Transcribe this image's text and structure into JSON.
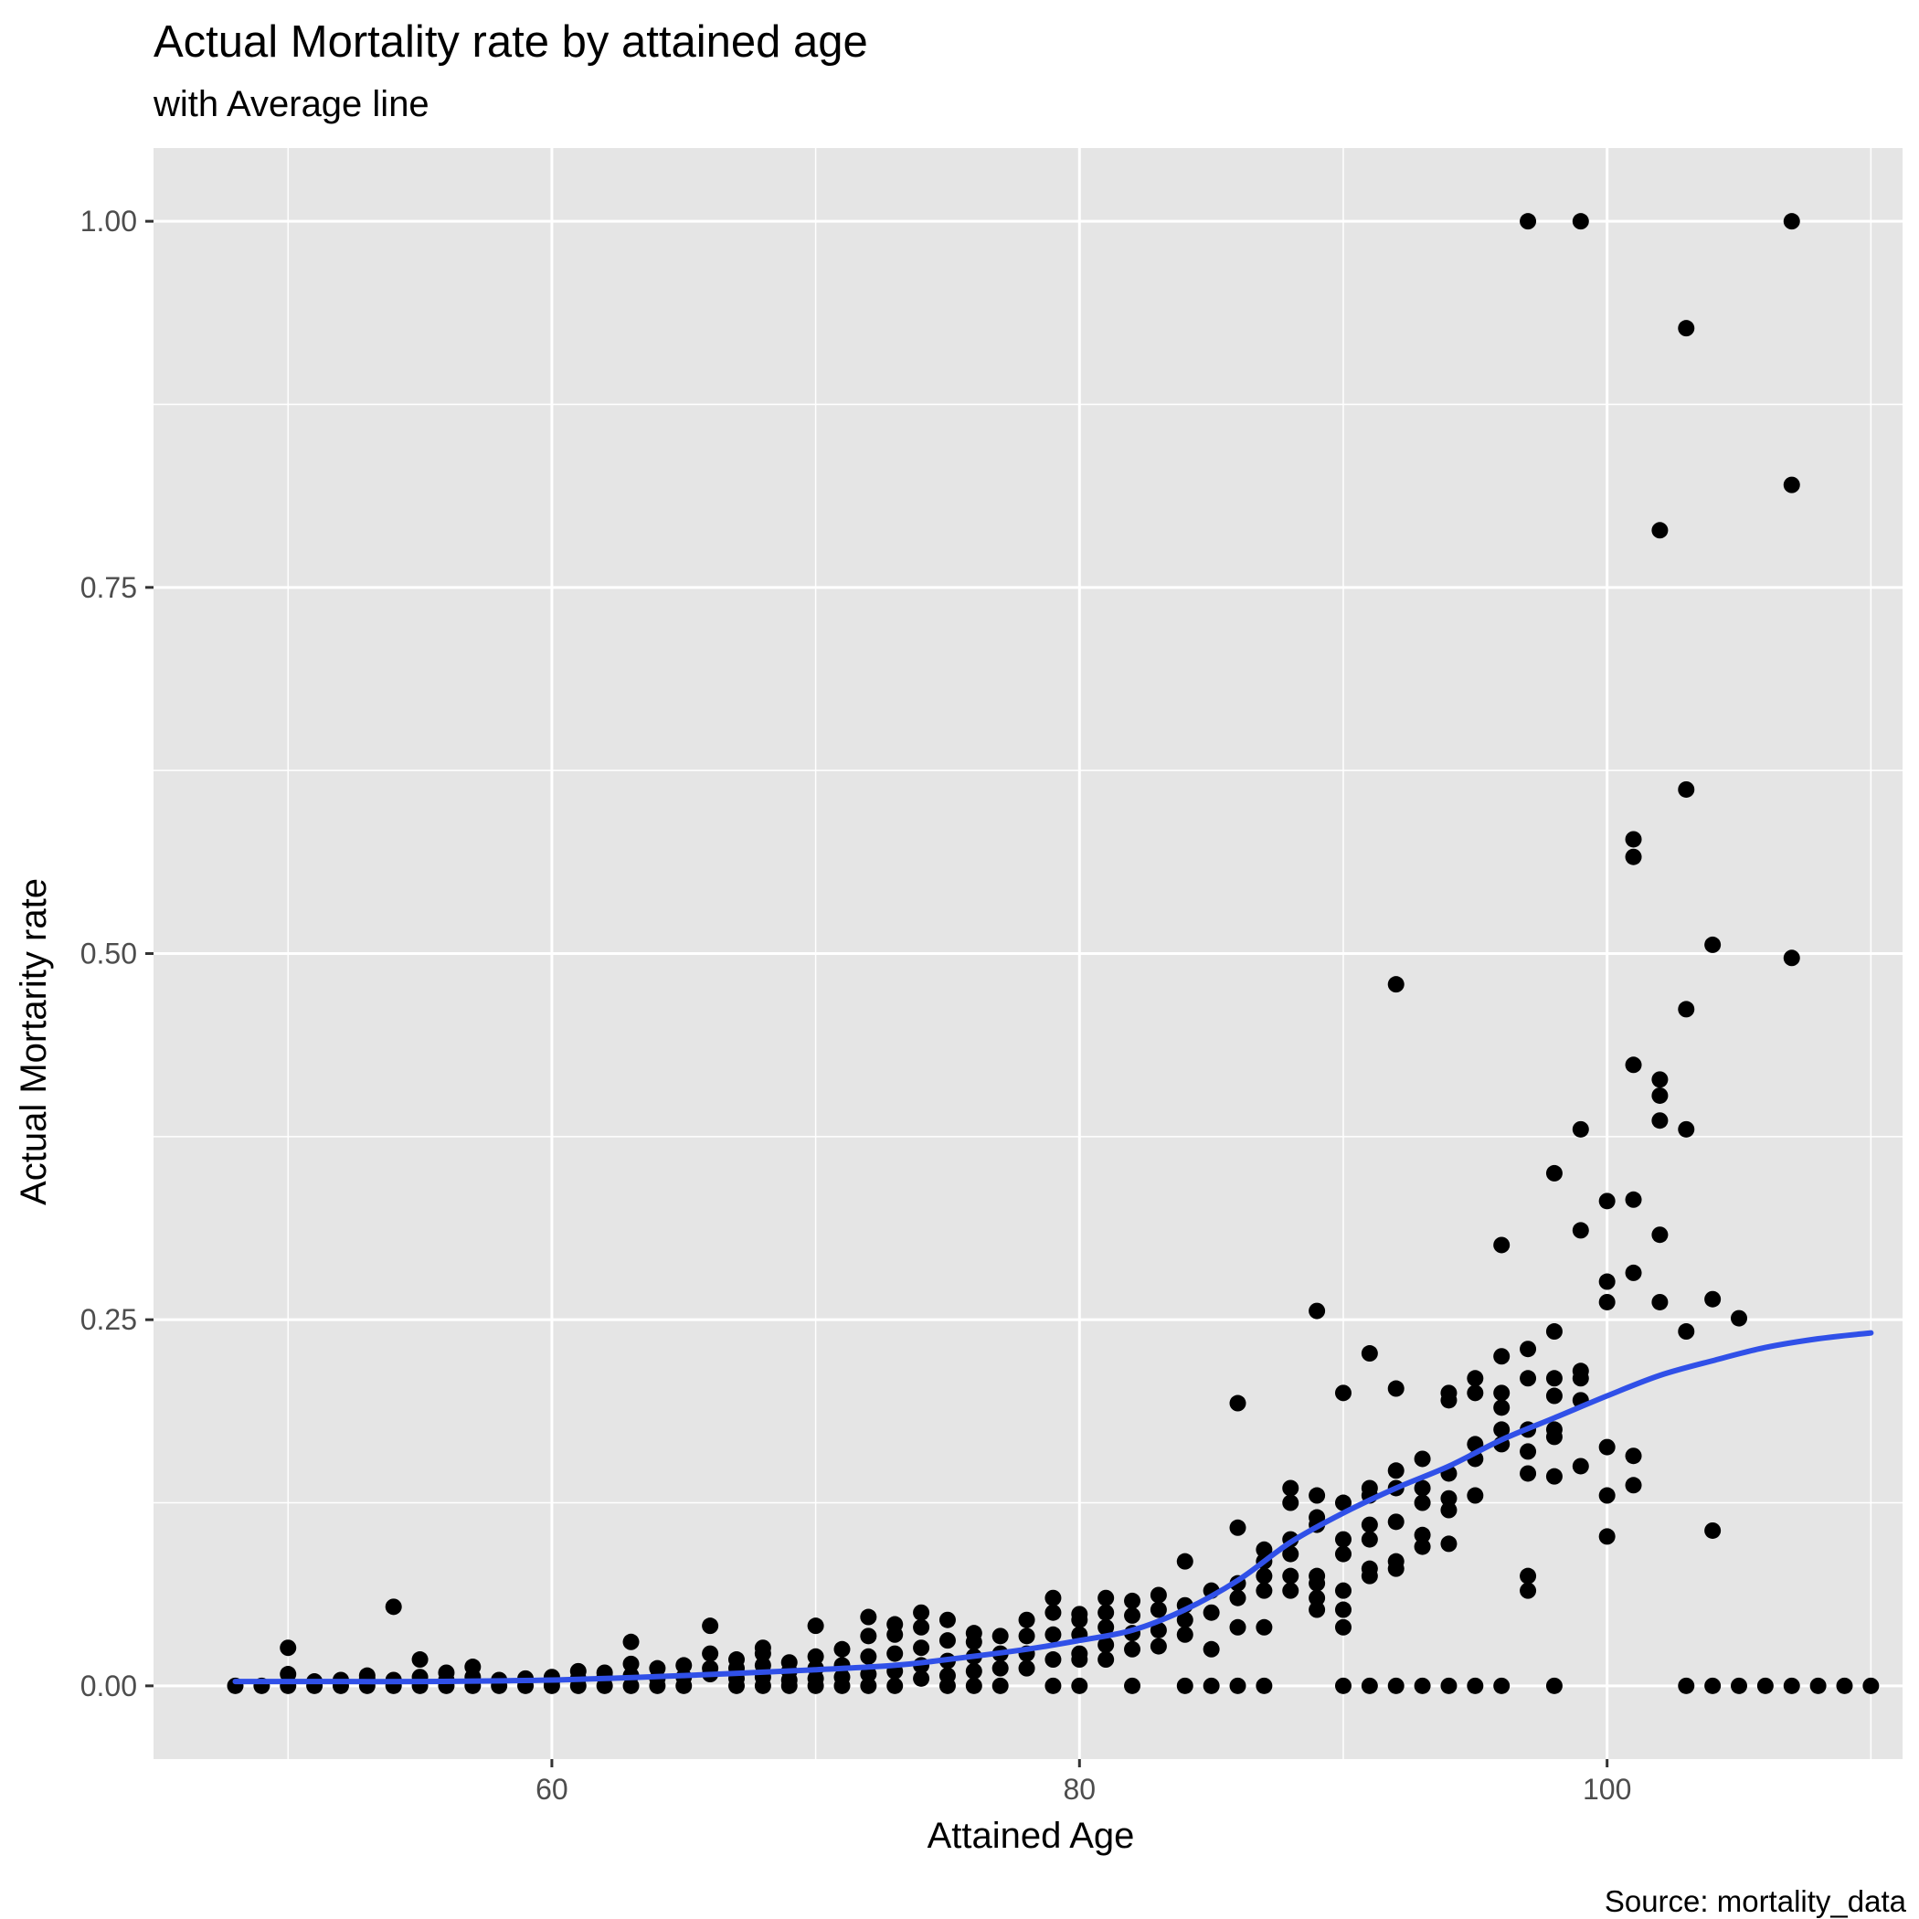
{
  "chart_data": {
    "type": "scatter",
    "title": "Actual Mortality rate by attained age",
    "subtitle": "with Average line",
    "caption": "Source: mortality_data",
    "xlabel": "Attained Age",
    "ylabel": "Actual Mortarity rate",
    "xlim": [
      44.9,
      111.2
    ],
    "ylim": [
      -0.05,
      1.05
    ],
    "xticks": [
      60,
      80,
      100
    ],
    "yticks": [
      0.0,
      0.25,
      0.5,
      0.75,
      1.0
    ],
    "ytick_labels": [
      "0.00",
      "0.25",
      "0.50",
      "0.75",
      "1.00"
    ],
    "grid": true,
    "colors": {
      "panel": "#e5e5e5",
      "grid": "#ffffff",
      "points": "#000000",
      "line": "#3050e8"
    },
    "points": [
      [
        48,
        0
      ],
      [
        49,
        0
      ],
      [
        50,
        0
      ],
      [
        50,
        0.008
      ],
      [
        50,
        0.026
      ],
      [
        51,
        0
      ],
      [
        51,
        0.003
      ],
      [
        52,
        0
      ],
      [
        52,
        0.004
      ],
      [
        53,
        0
      ],
      [
        53,
        0.005
      ],
      [
        53,
        0.007
      ],
      [
        54,
        0
      ],
      [
        54,
        0.004
      ],
      [
        54,
        0.054
      ],
      [
        55,
        0
      ],
      [
        55,
        0.006
      ],
      [
        55,
        0.018
      ],
      [
        56,
        0
      ],
      [
        56,
        0.004
      ],
      [
        56,
        0.009
      ],
      [
        57,
        0
      ],
      [
        57,
        0.006
      ],
      [
        57,
        0.013
      ],
      [
        58,
        0
      ],
      [
        58,
        0.004
      ],
      [
        59,
        0
      ],
      [
        59,
        0.005
      ],
      [
        60,
        0
      ],
      [
        60,
        0.003
      ],
      [
        60,
        0.006
      ],
      [
        61,
        0
      ],
      [
        61,
        0.005
      ],
      [
        61,
        0.01
      ],
      [
        62,
        0
      ],
      [
        62,
        0.006
      ],
      [
        62,
        0.009
      ],
      [
        63,
        0
      ],
      [
        63,
        0.007
      ],
      [
        63,
        0.015
      ],
      [
        63,
        0.03
      ],
      [
        64,
        0
      ],
      [
        64,
        0.005
      ],
      [
        64,
        0.012
      ],
      [
        65,
        0
      ],
      [
        65,
        0.006
      ],
      [
        65,
        0.014
      ],
      [
        66,
        0.008
      ],
      [
        66,
        0.012
      ],
      [
        66,
        0.022
      ],
      [
        66,
        0.041
      ],
      [
        67,
        0
      ],
      [
        67,
        0.005
      ],
      [
        67,
        0.012
      ],
      [
        67,
        0.018
      ],
      [
        68,
        0
      ],
      [
        68,
        0.006
      ],
      [
        68,
        0.014
      ],
      [
        68,
        0.022
      ],
      [
        68,
        0.026
      ],
      [
        69,
        0
      ],
      [
        69,
        0.004
      ],
      [
        69,
        0.01
      ],
      [
        69,
        0.016
      ],
      [
        70,
        0
      ],
      [
        70,
        0.005
      ],
      [
        70,
        0.012
      ],
      [
        70,
        0.02
      ],
      [
        70,
        0.041
      ],
      [
        71,
        0
      ],
      [
        71,
        0.006
      ],
      [
        71,
        0.014
      ],
      [
        71,
        0.025
      ],
      [
        72,
        0
      ],
      [
        72,
        0.008
      ],
      [
        72,
        0.02
      ],
      [
        72,
        0.034
      ],
      [
        72,
        0.047
      ],
      [
        73,
        0
      ],
      [
        73,
        0.01
      ],
      [
        73,
        0.022
      ],
      [
        73,
        0.035
      ],
      [
        73,
        0.042
      ],
      [
        74,
        0.005
      ],
      [
        74,
        0.014
      ],
      [
        74,
        0.026
      ],
      [
        74,
        0.04
      ],
      [
        74,
        0.05
      ],
      [
        75,
        0
      ],
      [
        75,
        0.007
      ],
      [
        75,
        0.017
      ],
      [
        75,
        0.031
      ],
      [
        75,
        0.045
      ],
      [
        76,
        0
      ],
      [
        76,
        0.01
      ],
      [
        76,
        0.02
      ],
      [
        76,
        0.03
      ],
      [
        76,
        0.036
      ],
      [
        77,
        0
      ],
      [
        77,
        0.012
      ],
      [
        77,
        0.022
      ],
      [
        77,
        0.034
      ],
      [
        78,
        0.012
      ],
      [
        78,
        0.022
      ],
      [
        78,
        0.034
      ],
      [
        78,
        0.045
      ],
      [
        79,
        0
      ],
      [
        79,
        0.018
      ],
      [
        79,
        0.035
      ],
      [
        79,
        0.05
      ],
      [
        79,
        0.06
      ],
      [
        80,
        0
      ],
      [
        80,
        0.018
      ],
      [
        80,
        0.022
      ],
      [
        80,
        0.035
      ],
      [
        80,
        0.045
      ],
      [
        80,
        0.049
      ],
      [
        81,
        0.018
      ],
      [
        81,
        0.028
      ],
      [
        81,
        0.04
      ],
      [
        81,
        0.05
      ],
      [
        81,
        0.06
      ],
      [
        82,
        0
      ],
      [
        82,
        0.025
      ],
      [
        82,
        0.036
      ],
      [
        82,
        0.048
      ],
      [
        82,
        0.058
      ],
      [
        83,
        0.027
      ],
      [
        83,
        0.038
      ],
      [
        83,
        0.052
      ],
      [
        83,
        0.062
      ],
      [
        84,
        0
      ],
      [
        84,
        0.035
      ],
      [
        84,
        0.045
      ],
      [
        84,
        0.055
      ],
      [
        84,
        0.085
      ],
      [
        85,
        0
      ],
      [
        85,
        0.025
      ],
      [
        85,
        0.05
      ],
      [
        85,
        0.065
      ],
      [
        86,
        0
      ],
      [
        86,
        0.04
      ],
      [
        86,
        0.06
      ],
      [
        86,
        0.07
      ],
      [
        86,
        0.108
      ],
      [
        86,
        0.193
      ],
      [
        87,
        0
      ],
      [
        87,
        0.04
      ],
      [
        87,
        0.065
      ],
      [
        87,
        0.075
      ],
      [
        87,
        0.085
      ],
      [
        87,
        0.093
      ],
      [
        88,
        0.065
      ],
      [
        88,
        0.075
      ],
      [
        88,
        0.09
      ],
      [
        88,
        0.1
      ],
      [
        88,
        0.125
      ],
      [
        88,
        0.135
      ],
      [
        89,
        0.052
      ],
      [
        89,
        0.06
      ],
      [
        89,
        0.07
      ],
      [
        89,
        0.075
      ],
      [
        89,
        0.11
      ],
      [
        89,
        0.115
      ],
      [
        89,
        0.13
      ],
      [
        89,
        0.256
      ],
      [
        90,
        0
      ],
      [
        90,
        0.04
      ],
      [
        90,
        0.052
      ],
      [
        90,
        0.065
      ],
      [
        90,
        0.09
      ],
      [
        90,
        0.1
      ],
      [
        90,
        0.125
      ],
      [
        90,
        0.2
      ],
      [
        91,
        0
      ],
      [
        91,
        0.075
      ],
      [
        91,
        0.08
      ],
      [
        91,
        0.1
      ],
      [
        91,
        0.11
      ],
      [
        91,
        0.13
      ],
      [
        91,
        0.135
      ],
      [
        91,
        0.227
      ],
      [
        92,
        0
      ],
      [
        92,
        0.08
      ],
      [
        92,
        0.085
      ],
      [
        92,
        0.112
      ],
      [
        92,
        0.135
      ],
      [
        92,
        0.147
      ],
      [
        92,
        0.203
      ],
      [
        92,
        0.479
      ],
      [
        93,
        0
      ],
      [
        93,
        0.095
      ],
      [
        93,
        0.103
      ],
      [
        93,
        0.125
      ],
      [
        93,
        0.135
      ],
      [
        93,
        0.155
      ],
      [
        94,
        0
      ],
      [
        94,
        0.097
      ],
      [
        94,
        0.12
      ],
      [
        94,
        0.128
      ],
      [
        94,
        0.145
      ],
      [
        94,
        0.195
      ],
      [
        94,
        0.2
      ],
      [
        95,
        0
      ],
      [
        95,
        0.13
      ],
      [
        95,
        0.155
      ],
      [
        95,
        0.165
      ],
      [
        95,
        0.2
      ],
      [
        95,
        0.21
      ],
      [
        96,
        0
      ],
      [
        96,
        0.165
      ],
      [
        96,
        0.175
      ],
      [
        96,
        0.19
      ],
      [
        96,
        0.2
      ],
      [
        96,
        0.225
      ],
      [
        96,
        0.301
      ],
      [
        97,
        0.065
      ],
      [
        97,
        0.075
      ],
      [
        97,
        0.145
      ],
      [
        97,
        0.16
      ],
      [
        97,
        0.175
      ],
      [
        97,
        0.21
      ],
      [
        97,
        0.23
      ],
      [
        97,
        1.0
      ],
      [
        98,
        0
      ],
      [
        98,
        0.143
      ],
      [
        98,
        0.17
      ],
      [
        98,
        0.175
      ],
      [
        98,
        0.198
      ],
      [
        98,
        0.21
      ],
      [
        98,
        0.242
      ],
      [
        98,
        0.35
      ],
      [
        99,
        0.15
      ],
      [
        99,
        0.195
      ],
      [
        99,
        0.21
      ],
      [
        99,
        0.215
      ],
      [
        99,
        0.311
      ],
      [
        99,
        0.38
      ],
      [
        99,
        1.0
      ],
      [
        100,
        0.102
      ],
      [
        100,
        0.13
      ],
      [
        100,
        0.163
      ],
      [
        100,
        0.262
      ],
      [
        100,
        0.276
      ],
      [
        100,
        0.331
      ],
      [
        101,
        0.137
      ],
      [
        101,
        0.157
      ],
      [
        101,
        0.282
      ],
      [
        101,
        0.332
      ],
      [
        101,
        0.424
      ],
      [
        101,
        0.566
      ],
      [
        101,
        0.578
      ],
      [
        102,
        0.262
      ],
      [
        102,
        0.308
      ],
      [
        102,
        0.386
      ],
      [
        102,
        0.403
      ],
      [
        102,
        0.414
      ],
      [
        102,
        0.789
      ],
      [
        103,
        0
      ],
      [
        103,
        0.242
      ],
      [
        103,
        0.38
      ],
      [
        103,
        0.462
      ],
      [
        103,
        0.612
      ],
      [
        103,
        0.927
      ],
      [
        104,
        0
      ],
      [
        104,
        0.106
      ],
      [
        104,
        0.264
      ],
      [
        104,
        0.506
      ],
      [
        105,
        0
      ],
      [
        105,
        0.251
      ],
      [
        106,
        0
      ],
      [
        107,
        0
      ],
      [
        107,
        0.497
      ],
      [
        107,
        0.82
      ],
      [
        107,
        1.0
      ],
      [
        108,
        0
      ],
      [
        109,
        0
      ],
      [
        110,
        0
      ]
    ],
    "smooth": [
      [
        48,
        0.003
      ],
      [
        50,
        0.003
      ],
      [
        55,
        0.003
      ],
      [
        60,
        0.004
      ],
      [
        65,
        0.007
      ],
      [
        70,
        0.011
      ],
      [
        73,
        0.014
      ],
      [
        75,
        0.018
      ],
      [
        78,
        0.025
      ],
      [
        80,
        0.031
      ],
      [
        82,
        0.038
      ],
      [
        84,
        0.052
      ],
      [
        86,
        0.072
      ],
      [
        88,
        0.098
      ],
      [
        90,
        0.118
      ],
      [
        92,
        0.135
      ],
      [
        94,
        0.15
      ],
      [
        96,
        0.168
      ],
      [
        98,
        0.183
      ],
      [
        100,
        0.198
      ],
      [
        102,
        0.212
      ],
      [
        104,
        0.222
      ],
      [
        106,
        0.231
      ],
      [
        108,
        0.237
      ],
      [
        110,
        0.241
      ]
    ]
  }
}
